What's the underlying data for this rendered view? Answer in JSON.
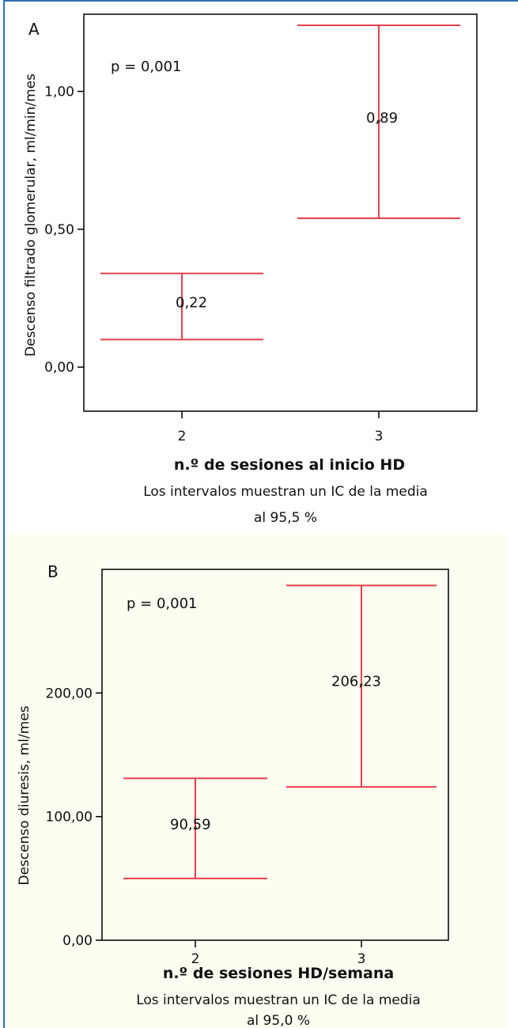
{
  "chart_data": [
    {
      "type": "errorbar",
      "panel_label": "A",
      "annotation": "p = 0,001",
      "categories": [
        "2",
        "3"
      ],
      "series": [
        {
          "values": [
            0.22,
            0.89
          ],
          "value_labels": [
            "0,22",
            "0,89"
          ],
          "ci_lower": [
            0.1,
            0.54
          ],
          "ci_upper": [
            0.34,
            1.24
          ]
        }
      ],
      "ylim": [
        -0.16,
        1.28
      ],
      "yticks": [
        0.0,
        0.5,
        1.0
      ],
      "ytick_labels": [
        "0,00",
        "0,50",
        "1,00"
      ],
      "ylabel": "Descenso filtrado glomerular, ml/min/mes",
      "xlabel": "n.º de sesiones al inicio HD",
      "caption_line1": "Los intervalos muestran un IC de la media",
      "caption_line2": "al 95,5 %",
      "color": "#e8404f",
      "grid": false
    },
    {
      "type": "errorbar",
      "panel_label": "B",
      "annotation": "p = 0,001",
      "categories": [
        "2",
        "3"
      ],
      "series": [
        {
          "values": [
            90.59,
            206.23
          ],
          "value_labels": [
            "90,59",
            "206,23"
          ],
          "ci_lower": [
            50,
            124
          ],
          "ci_upper": [
            131,
            287
          ]
        }
      ],
      "ylim": [
        0,
        300
      ],
      "yticks": [
        0,
        100,
        200
      ],
      "ytick_labels": [
        "0,00",
        "100,00",
        "200,00"
      ],
      "ylabel": "Descenso diuresis, ml/mes",
      "xlabel": "n.º de sesiones HD/semana",
      "caption_line1": "Los intervalos muestran un IC de la media",
      "caption_line2": "al 95,0 %",
      "color": "#e8404f",
      "grid": false
    }
  ]
}
